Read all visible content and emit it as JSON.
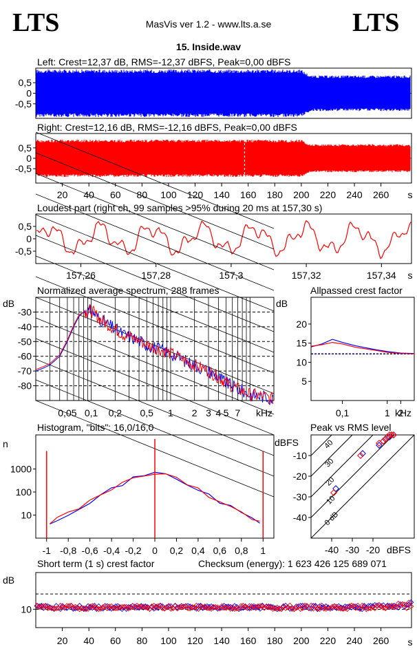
{
  "header": {
    "brand_left": "LTS",
    "brand_right": "LTS",
    "app_title": "MasVis ver 1.2 - www.lts.a.se",
    "file_title": "15. Inside.wav"
  },
  "colors": {
    "left": "#0000ff",
    "right": "#ff0000",
    "grid": "#000000"
  },
  "chart_data": [
    {
      "id": "left",
      "type": "area",
      "title": "Left: Crest=12,37 dB, RMS=-12,37 dBFS, Peak=0,00 dBFS",
      "yticks": [
        "0,5",
        "0",
        "-0,5"
      ],
      "ytick_values": [
        0.5,
        0,
        -0.5
      ],
      "ylim": [
        -1,
        1
      ],
      "xlim": [
        0,
        283
      ],
      "envelope": [
        {
          "x": 0,
          "v": 1.0
        },
        {
          "x": 200,
          "v": 1.0
        },
        {
          "x": 207,
          "v": 0.75
        },
        {
          "x": 283,
          "v": 0.75
        }
      ]
    },
    {
      "id": "right",
      "type": "area",
      "title": "Right: Crest=12,16 dB, RMS=-12,16 dBFS, Peak=0,00 dBFS",
      "yticks": [
        "0,5",
        "0",
        "-0,5"
      ],
      "ytick_values": [
        0.5,
        0,
        -0.5
      ],
      "ylim": [
        -1,
        1
      ],
      "xlim": [
        0,
        283
      ],
      "marker_x": 157.3,
      "xticks": [
        "20",
        "40",
        "60",
        "80",
        "100",
        "120",
        "140",
        "160",
        "180",
        "200",
        "220",
        "240",
        "260"
      ],
      "xtick_values": [
        20,
        40,
        60,
        80,
        100,
        120,
        140,
        160,
        180,
        200,
        220,
        240,
        260
      ],
      "xunit": "s",
      "envelope": [
        {
          "x": 0,
          "v": 0.8
        },
        {
          "x": 200,
          "v": 0.8
        },
        {
          "x": 207,
          "v": 0.6
        },
        {
          "x": 283,
          "v": 0.6
        }
      ]
    },
    {
      "id": "loudest",
      "type": "line",
      "title": "Loudest part (right ch, 99 samples >95% during 20 ms at 157,30 s)",
      "yticks": [
        "0,5",
        "0",
        "-0,5"
      ],
      "ytick_values": [
        0.5,
        0,
        -0.5
      ],
      "ylim": [
        -1,
        1
      ],
      "xlim": [
        157.248,
        157.348
      ],
      "xticks": [
        "157,26",
        "157,28",
        "157,3",
        "157,32",
        "157,34"
      ],
      "xtick_values": [
        157.26,
        157.28,
        157.3,
        157.32,
        157.34
      ],
      "xunit": "s"
    },
    {
      "id": "spectrum",
      "type": "line",
      "title": "Normalized average spectrum, 288 frames",
      "ylabel": "dB",
      "yticks": [
        "-30",
        "-40",
        "-50",
        "-60",
        "-70",
        "-80"
      ],
      "ytick_values": [
        -30,
        -40,
        -50,
        -60,
        -70,
        -80
      ],
      "ylim": [
        -90,
        -20
      ],
      "xscale": "log",
      "xlim": [
        0.02,
        20
      ],
      "xticks": [
        "0,05",
        "0,1",
        "0,2",
        "0,5",
        "1",
        "2",
        "3",
        "4",
        "5",
        "7"
      ],
      "xtick_values": [
        0.05,
        0.1,
        0.2,
        0.5,
        1,
        2,
        3,
        4,
        5,
        7
      ],
      "xunit": "kHz",
      "series": [
        {
          "color": "#0000ff",
          "points": [
            [
              0.02,
              -70
            ],
            [
              0.025,
              -68
            ],
            [
              0.03,
              -66
            ],
            [
              0.04,
              -60
            ],
            [
              0.05,
              -50
            ],
            [
              0.06,
              -40
            ],
            [
              0.07,
              -33
            ],
            [
              0.08,
              -30
            ],
            [
              0.1,
              -29
            ],
            [
              0.13,
              -35
            ],
            [
              0.18,
              -40
            ],
            [
              0.25,
              -45
            ],
            [
              0.35,
              -48
            ],
            [
              0.5,
              -52
            ],
            [
              0.7,
              -55
            ],
            [
              1,
              -58
            ],
            [
              1.5,
              -63
            ],
            [
              2,
              -66
            ],
            [
              3,
              -70
            ],
            [
              4,
              -74
            ],
            [
              5,
              -78
            ],
            [
              7,
              -82
            ],
            [
              10,
              -86
            ],
            [
              14,
              -87
            ],
            [
              20,
              -89
            ]
          ]
        },
        {
          "color": "#ff0000",
          "points": [
            [
              0.02,
              -69
            ],
            [
              0.025,
              -67
            ],
            [
              0.03,
              -65
            ],
            [
              0.04,
              -59
            ],
            [
              0.05,
              -49
            ],
            [
              0.06,
              -39
            ],
            [
              0.07,
              -32
            ],
            [
              0.08,
              -30
            ],
            [
              0.1,
              -29
            ],
            [
              0.13,
              -35
            ],
            [
              0.18,
              -40
            ],
            [
              0.25,
              -45
            ],
            [
              0.35,
              -48
            ],
            [
              0.5,
              -52
            ],
            [
              0.7,
              -55
            ],
            [
              1,
              -58
            ],
            [
              1.5,
              -63
            ],
            [
              2,
              -66
            ],
            [
              3,
              -70
            ],
            [
              4,
              -74
            ],
            [
              5,
              -78
            ],
            [
              7,
              -82
            ],
            [
              10,
              -86
            ],
            [
              14,
              -87
            ],
            [
              20,
              -89
            ]
          ]
        }
      ]
    },
    {
      "id": "allpass",
      "type": "line",
      "title": "Allpassed crest factor",
      "ylabel": "dB",
      "yticks": [
        "20",
        "15",
        "10",
        "5"
      ],
      "ytick_values": [
        20,
        15,
        10,
        5
      ],
      "ylim": [
        0,
        27
      ],
      "xscale": "log",
      "xlim": [
        0.02,
        4
      ],
      "xticks": [
        "0,1",
        "1",
        "2"
      ],
      "xtick_values": [
        0.1,
        1,
        2
      ],
      "xunit": "kHz",
      "baseline": 12.2,
      "series": [
        {
          "color": "#0000ff",
          "points": [
            [
              0.02,
              14
            ],
            [
              0.035,
              14.8
            ],
            [
              0.06,
              16
            ],
            [
              0.1,
              15.2
            ],
            [
              0.2,
              14.3
            ],
            [
              0.5,
              13.4
            ],
            [
              1,
              12.8
            ],
            [
              2,
              12.4
            ],
            [
              4,
              12.3
            ]
          ]
        },
        {
          "color": "#ff0000",
          "points": [
            [
              0.02,
              14.2
            ],
            [
              0.035,
              14.6
            ],
            [
              0.06,
              15.2
            ],
            [
              0.1,
              14.8
            ],
            [
              0.2,
              13.9
            ],
            [
              0.5,
              13.2
            ],
            [
              1,
              12.6
            ],
            [
              2,
              12.3
            ],
            [
              4,
              12.2
            ]
          ]
        }
      ]
    },
    {
      "id": "histogram",
      "type": "line",
      "title": "Histogram, \"bits\": 16,0/16,0",
      "ylabel": "n",
      "yscale": "log",
      "yticks": [
        "1000",
        "100",
        "10"
      ],
      "ytick_values": [
        1000,
        100,
        10
      ],
      "ylim": [
        1,
        30000
      ],
      "xlim": [
        -1.1,
        1.1
      ],
      "xticks": [
        "-1",
        "-0,8",
        "-0,6",
        "-0,4",
        "-0,2",
        "0",
        "0,2",
        "0,4",
        "0,6",
        "0,8",
        "1"
      ],
      "xtick_values": [
        -1,
        -0.8,
        -0.6,
        -0.4,
        -0.2,
        0,
        0.2,
        0.4,
        0.6,
        0.8,
        1
      ],
      "spikes": [
        {
          "x": -1,
          "n": 6000
        },
        {
          "x": 0,
          "n": 20000
        },
        {
          "x": 1,
          "n": 6000
        }
      ],
      "series": [
        {
          "color": "#0000ff",
          "points": [
            [
              -0.97,
              5
            ],
            [
              -0.9,
              7
            ],
            [
              -0.8,
              12
            ],
            [
              -0.7,
              22
            ],
            [
              -0.6,
              40
            ],
            [
              -0.5,
              75
            ],
            [
              -0.4,
              130
            ],
            [
              -0.3,
              230
            ],
            [
              -0.2,
              380
            ],
            [
              -0.1,
              560
            ],
            [
              0,
              680
            ],
            [
              0.1,
              560
            ],
            [
              0.2,
              380
            ],
            [
              0.3,
              230
            ],
            [
              0.4,
              130
            ],
            [
              0.5,
              75
            ],
            [
              0.6,
              40
            ],
            [
              0.7,
              22
            ],
            [
              0.8,
              12
            ],
            [
              0.9,
              7
            ],
            [
              0.97,
              5
            ]
          ]
        },
        {
          "color": "#ff0000",
          "points": [
            [
              -0.97,
              5
            ],
            [
              -0.9,
              7
            ],
            [
              -0.8,
              12
            ],
            [
              -0.7,
              21
            ],
            [
              -0.6,
              38
            ],
            [
              -0.5,
              72
            ],
            [
              -0.4,
              125
            ],
            [
              -0.3,
              225
            ],
            [
              -0.2,
              370
            ],
            [
              -0.1,
              550
            ],
            [
              0,
              670
            ],
            [
              0.1,
              550
            ],
            [
              0.2,
              370
            ],
            [
              0.3,
              225
            ],
            [
              0.4,
              125
            ],
            [
              0.5,
              72
            ],
            [
              0.6,
              38
            ],
            [
              0.7,
              21
            ],
            [
              0.8,
              12
            ],
            [
              0.9,
              7
            ],
            [
              0.97,
              5
            ]
          ]
        }
      ]
    },
    {
      "id": "peak_rms",
      "type": "scatter",
      "title": "Peak vs RMS level",
      "ylabel": "dBFS",
      "xlabel": "dBFS",
      "yticks": [
        "-10",
        "-20",
        "-30",
        "-40"
      ],
      "ytick_values": [
        -10,
        -20,
        -30,
        -40
      ],
      "ylim": [
        -50,
        0
      ],
      "xlim": [
        -50,
        0
      ],
      "xticks": [
        "-40",
        "-30",
        "-20"
      ],
      "xtick_values": [
        -40,
        -30,
        -20
      ],
      "diagonals": [
        "0 dB",
        "10",
        "20",
        "30",
        "40"
      ],
      "diagonal_values": [
        0,
        10,
        20,
        30,
        40
      ],
      "series": [
        {
          "color": "#0000ff",
          "points": [
            [
              -38,
              -26
            ],
            [
              -25,
              -9
            ],
            [
              -17,
              -5
            ],
            [
              -15,
              -3
            ],
            [
              -14,
              -2
            ],
            [
              -13,
              -1
            ],
            [
              -12,
              -1
            ],
            [
              -11,
              0
            ],
            [
              -10,
              0
            ]
          ]
        },
        {
          "color": "#ff0000",
          "points": [
            [
              -39,
              -28
            ],
            [
              -26,
              -10
            ],
            [
              -17,
              -4
            ],
            [
              -15,
              -3
            ],
            [
              -14,
              -2
            ],
            [
              -13,
              -1
            ],
            [
              -12,
              0
            ],
            [
              -11,
              0
            ],
            [
              -10,
              0
            ]
          ]
        }
      ]
    },
    {
      "id": "short_crest",
      "type": "scatter",
      "title": "Short term (1 s) crest factor",
      "ylabel": "dB",
      "yticks": [
        "10"
      ],
      "ytick_values": [
        10
      ],
      "ylim": [
        4,
        22
      ],
      "xlim": [
        0,
        283
      ],
      "xticks": [
        "20",
        "40",
        "60",
        "80",
        "100",
        "120",
        "140",
        "160",
        "180",
        "200",
        "220",
        "240",
        "260"
      ],
      "xtick_values": [
        20,
        40,
        60,
        80,
        100,
        120,
        140,
        160,
        180,
        200,
        220,
        240,
        260
      ],
      "xunit": "s",
      "reference_lines": [
        10,
        15
      ]
    }
  ],
  "checksum": {
    "text": "Checksum (energy):  1 623 426 125 689 071"
  }
}
